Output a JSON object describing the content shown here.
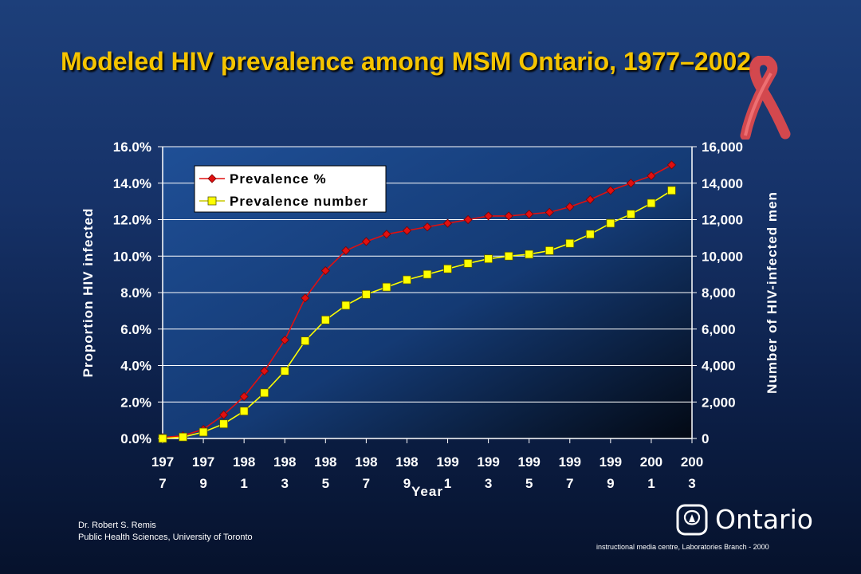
{
  "slide": {
    "title": "Modeled HIV prevalence among MSM Ontario, 1977–2002",
    "author": "Dr. Robert S. Remis",
    "affiliation": "Public Health Sciences, University of Toronto",
    "logo_text": "Ontario",
    "footer": "instructional media centre, Laboratories Branch - 2000",
    "logo_icon": "ontario-trillium-icon",
    "decoration_icon": "red-ribbon-icon"
  },
  "chart_data": {
    "type": "line",
    "xlabel": "Year",
    "ylabel": "Proportion HIV infected",
    "y2label": "Number of HIV-infected men",
    "x_ticks": [
      {
        "top": "197",
        "bottom": "7"
      },
      {
        "top": "197",
        "bottom": "9"
      },
      {
        "top": "198",
        "bottom": "1"
      },
      {
        "top": "198",
        "bottom": "3"
      },
      {
        "top": "198",
        "bottom": "5"
      },
      {
        "top": "198",
        "bottom": "7"
      },
      {
        "top": "198",
        "bottom": "9"
      },
      {
        "top": "199",
        "bottom": "1"
      },
      {
        "top": "199",
        "bottom": "3"
      },
      {
        "top": "199",
        "bottom": "5"
      },
      {
        "top": "199",
        "bottom": "7"
      },
      {
        "top": "199",
        "bottom": "9"
      },
      {
        "top": "200",
        "bottom": "1"
      },
      {
        "top": "200",
        "bottom": "3"
      }
    ],
    "y_ticks": [
      "0.0%",
      "2.0%",
      "4.0%",
      "6.0%",
      "8.0%",
      "10.0%",
      "12.0%",
      "14.0%",
      "16.0%"
    ],
    "y2_ticks": [
      "0",
      "2,000",
      "4,000",
      "6,000",
      "8,000",
      "10,000",
      "12,000",
      "14,000",
      "16,000"
    ],
    "ylim": [
      0,
      16
    ],
    "y2lim": [
      0,
      16000
    ],
    "xlim": [
      1977,
      2003
    ],
    "grid": true,
    "legend_position": "top-left",
    "x": [
      1977,
      1978,
      1979,
      1980,
      1981,
      1982,
      1983,
      1984,
      1985,
      1986,
      1987,
      1988,
      1989,
      1990,
      1991,
      1992,
      1993,
      1994,
      1995,
      1996,
      1997,
      1998,
      1999,
      2000,
      2001,
      2002
    ],
    "series": [
      {
        "name": "Prevalence %",
        "axis": "left",
        "color": "#e01010",
        "marker": "diamond",
        "values": [
          0.05,
          0.15,
          0.5,
          1.3,
          2.3,
          3.7,
          5.4,
          7.7,
          9.2,
          10.3,
          10.8,
          11.2,
          11.4,
          11.6,
          11.8,
          12.0,
          12.2,
          12.2,
          12.3,
          12.4,
          12.7,
          13.1,
          13.6,
          14.0,
          14.4,
          15.0
        ]
      },
      {
        "name": "Prevalence number",
        "axis": "right",
        "color": "#ffff00",
        "marker": "square",
        "values": [
          0,
          80,
          350,
          800,
          1500,
          2500,
          3700,
          5350,
          6500,
          7300,
          7900,
          8300,
          8700,
          9000,
          9300,
          9600,
          9850,
          10000,
          10100,
          10300,
          10700,
          11200,
          11800,
          12300,
          12900,
          13600
        ]
      }
    ]
  }
}
